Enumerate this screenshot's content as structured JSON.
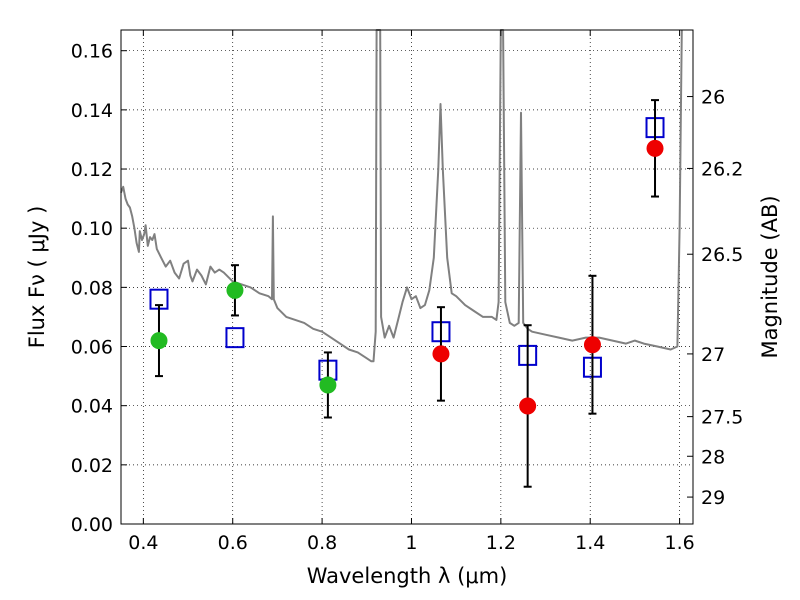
{
  "chart_data": {
    "type": "scatter",
    "xlabel": "Wavelength  λ (μm)",
    "ylabel": "Flux  Fν  ( μJy )",
    "y2label": "Magnitude (AB)",
    "xlim": [
      0.35,
      1.63
    ],
    "ylim": [
      0.0,
      0.167
    ],
    "grid": true,
    "xticks": [
      0.4,
      0.6,
      0.8,
      1.0,
      1.2,
      1.4,
      1.6
    ],
    "xtick_labels": [
      "0.4",
      "0.6",
      "0.8",
      "1",
      "1.2",
      "1.4",
      "1.6"
    ],
    "yticks": [
      0.0,
      0.02,
      0.04,
      0.06,
      0.08,
      0.1,
      0.12,
      0.14,
      0.16
    ],
    "ytick_labels": [
      "0.00",
      "0.02",
      "0.04",
      "0.06",
      "0.08",
      "0.10",
      "0.12",
      "0.14",
      "0.16"
    ],
    "y2ticks": [
      {
        "label": "26",
        "flux": 0.1445
      },
      {
        "label": "26.2",
        "flux": 0.1202
      },
      {
        "label": "26.5",
        "flux": 0.0912
      },
      {
        "label": "27",
        "flux": 0.0575
      },
      {
        "label": "27.5",
        "flux": 0.0363
      },
      {
        "label": "28",
        "flux": 0.0229
      },
      {
        "label": "29",
        "flux": 0.0091
      }
    ],
    "series": [
      {
        "name": "model spectrum",
        "kind": "line",
        "color": "#808080",
        "points": [
          [
            0.35,
            0.112
          ],
          [
            0.355,
            0.114
          ],
          [
            0.36,
            0.11
          ],
          [
            0.365,
            0.108
          ],
          [
            0.37,
            0.107
          ],
          [
            0.375,
            0.104
          ],
          [
            0.38,
            0.1
          ],
          [
            0.385,
            0.095
          ],
          [
            0.39,
            0.092
          ],
          [
            0.392,
            0.099
          ],
          [
            0.397,
            0.096
          ],
          [
            0.402,
            0.098
          ],
          [
            0.405,
            0.101
          ],
          [
            0.41,
            0.094
          ],
          [
            0.415,
            0.097
          ],
          [
            0.42,
            0.096
          ],
          [
            0.425,
            0.098
          ],
          [
            0.43,
            0.093
          ],
          [
            0.44,
            0.09
          ],
          [
            0.45,
            0.087
          ],
          [
            0.46,
            0.089
          ],
          [
            0.47,
            0.085
          ],
          [
            0.48,
            0.083
          ],
          [
            0.49,
            0.088
          ],
          [
            0.5,
            0.089
          ],
          [
            0.505,
            0.084
          ],
          [
            0.51,
            0.082
          ],
          [
            0.52,
            0.086
          ],
          [
            0.53,
            0.084
          ],
          [
            0.54,
            0.081
          ],
          [
            0.55,
            0.087
          ],
          [
            0.56,
            0.085
          ],
          [
            0.57,
            0.086
          ],
          [
            0.58,
            0.085
          ],
          [
            0.6,
            0.082
          ],
          [
            0.62,
            0.081
          ],
          [
            0.64,
            0.08
          ],
          [
            0.66,
            0.078
          ],
          [
            0.68,
            0.077
          ],
          [
            0.688,
            0.076
          ],
          [
            0.69,
            0.104
          ],
          [
            0.692,
            0.076
          ],
          [
            0.7,
            0.073
          ],
          [
            0.72,
            0.07
          ],
          [
            0.74,
            0.069
          ],
          [
            0.76,
            0.068
          ],
          [
            0.78,
            0.066
          ],
          [
            0.8,
            0.065
          ],
          [
            0.82,
            0.063
          ],
          [
            0.84,
            0.061
          ],
          [
            0.86,
            0.059
          ],
          [
            0.88,
            0.058
          ],
          [
            0.9,
            0.056
          ],
          [
            0.91,
            0.055
          ],
          [
            0.915,
            0.055
          ],
          [
            0.92,
            0.065
          ],
          [
            0.922,
            0.167
          ],
          [
            0.93,
            0.167
          ],
          [
            0.932,
            0.07
          ],
          [
            0.94,
            0.063
          ],
          [
            0.95,
            0.067
          ],
          [
            0.96,
            0.063
          ],
          [
            0.97,
            0.069
          ],
          [
            0.98,
            0.075
          ],
          [
            0.99,
            0.08
          ],
          [
            1.0,
            0.076
          ],
          [
            1.01,
            0.077
          ],
          [
            1.02,
            0.073
          ],
          [
            1.03,
            0.074
          ],
          [
            1.04,
            0.079
          ],
          [
            1.05,
            0.09
          ],
          [
            1.06,
            0.12
          ],
          [
            1.065,
            0.142
          ],
          [
            1.07,
            0.12
          ],
          [
            1.08,
            0.09
          ],
          [
            1.09,
            0.078
          ],
          [
            1.1,
            0.077
          ],
          [
            1.12,
            0.074
          ],
          [
            1.14,
            0.072
          ],
          [
            1.16,
            0.07
          ],
          [
            1.18,
            0.07
          ],
          [
            1.19,
            0.069
          ],
          [
            1.195,
            0.075
          ],
          [
            1.2,
            0.167
          ],
          [
            1.205,
            0.167
          ],
          [
            1.21,
            0.075
          ],
          [
            1.22,
            0.068
          ],
          [
            1.23,
            0.067
          ],
          [
            1.24,
            0.068
          ],
          [
            1.245,
            0.139
          ],
          [
            1.25,
            0.068
          ],
          [
            1.26,
            0.066
          ],
          [
            1.27,
            0.065
          ],
          [
            1.3,
            0.064
          ],
          [
            1.33,
            0.063
          ],
          [
            1.36,
            0.062
          ],
          [
            1.39,
            0.063
          ],
          [
            1.42,
            0.063
          ],
          [
            1.45,
            0.062
          ],
          [
            1.48,
            0.061
          ],
          [
            1.5,
            0.062
          ],
          [
            1.52,
            0.061
          ],
          [
            1.55,
            0.06
          ],
          [
            1.58,
            0.059
          ],
          [
            1.595,
            0.06
          ],
          [
            1.6,
            0.1
          ],
          [
            1.605,
            0.167
          ]
        ]
      },
      {
        "name": "blue squares",
        "kind": "open-square",
        "color": "#0000cc",
        "points": [
          {
            "x": 0.435,
            "y": 0.076
          },
          {
            "x": 0.605,
            "y": 0.063
          },
          {
            "x": 0.813,
            "y": 0.052
          },
          {
            "x": 1.066,
            "y": 0.065
          },
          {
            "x": 1.26,
            "y": 0.057
          },
          {
            "x": 1.405,
            "y": 0.053
          },
          {
            "x": 1.545,
            "y": 0.134
          }
        ]
      },
      {
        "name": "green circles",
        "kind": "filled-circle",
        "color": "#22bb22",
        "points": [
          {
            "x": 0.435,
            "y": 0.062,
            "err": 0.012
          },
          {
            "x": 0.605,
            "y": 0.079,
            "err": 0.0085
          },
          {
            "x": 0.813,
            "y": 0.047,
            "err": 0.011
          }
        ]
      },
      {
        "name": "red circles",
        "kind": "filled-circle",
        "color": "#ee0000",
        "points": [
          {
            "x": 1.066,
            "y": 0.0575,
            "err": 0.0158
          },
          {
            "x": 1.26,
            "y": 0.0399,
            "err": 0.0273
          },
          {
            "x": 1.405,
            "y": 0.0606,
            "err": 0.0233
          },
          {
            "x": 1.545,
            "y": 0.127,
            "err": 0.0163
          }
        ]
      }
    ]
  }
}
